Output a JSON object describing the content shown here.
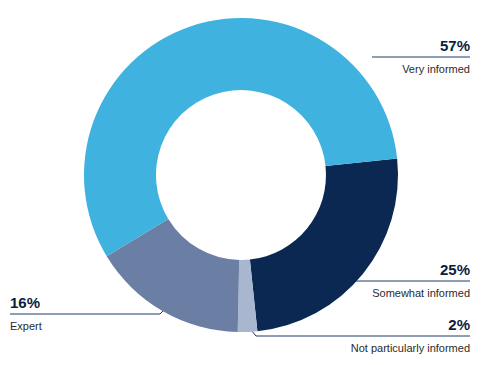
{
  "chart_data": {
    "type": "donut",
    "categories": [
      "Somewhat informed",
      "Not particularly informed",
      "Expert",
      "Very informed"
    ],
    "values": [
      25,
      2,
      16,
      57
    ],
    "value_labels": [
      "25%",
      "2%",
      "16%",
      "57%"
    ],
    "colors": [
      "#0b2852",
      "#a8b6cf",
      "#6b7ea3",
      "#3fb2e0"
    ],
    "data_labels": true
  }
}
